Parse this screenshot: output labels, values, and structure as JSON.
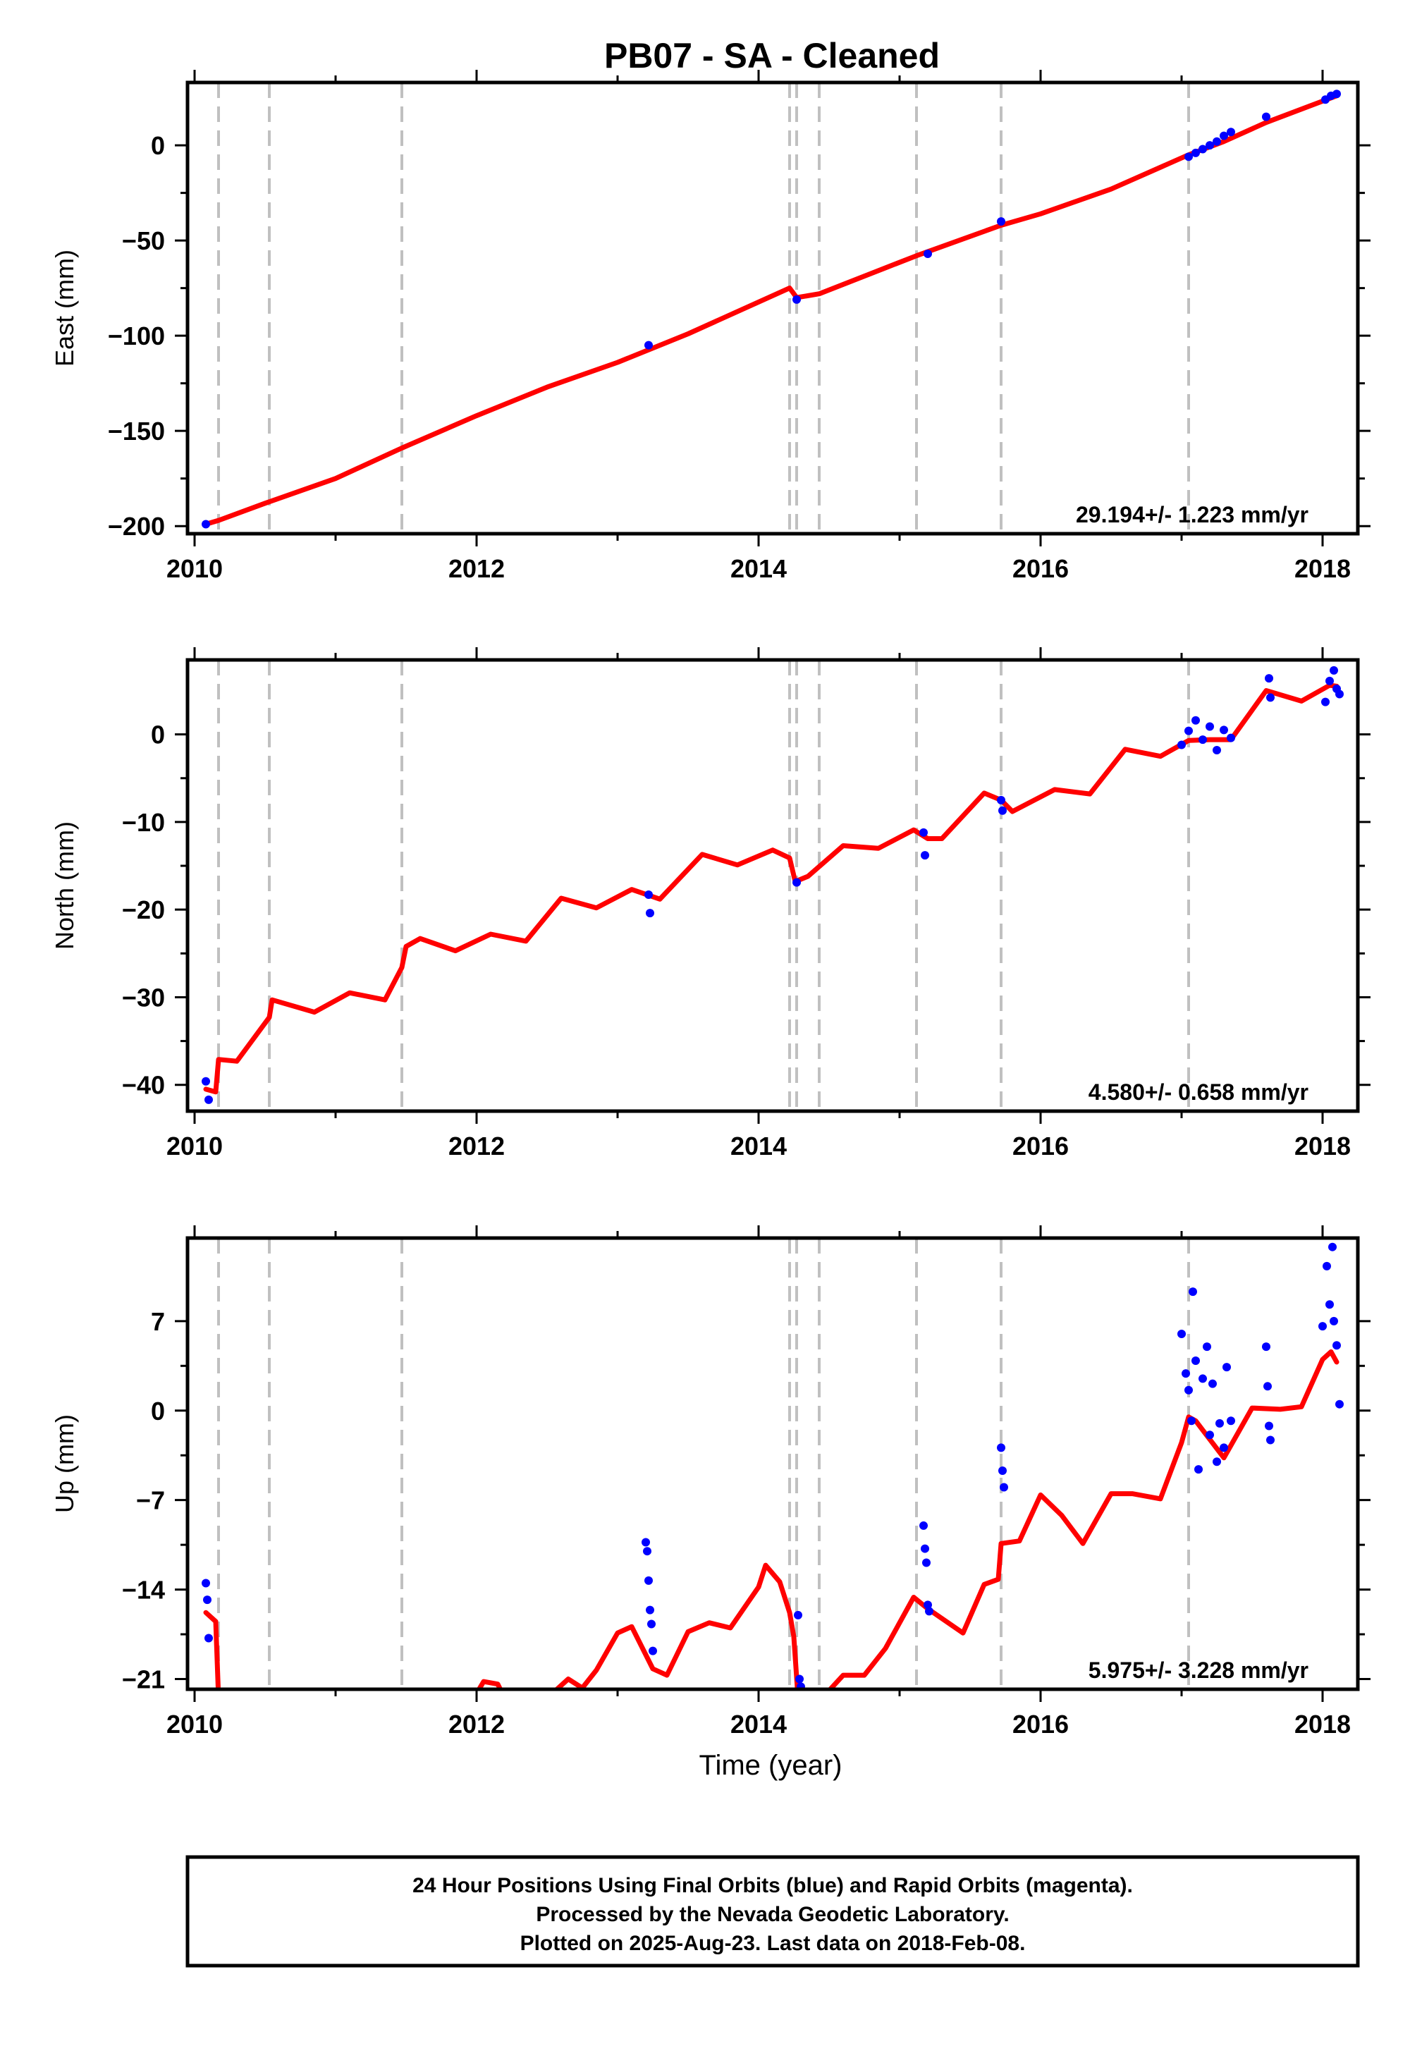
{
  "title": "PB07  - SA - Cleaned",
  "xlabel": "Time (year)",
  "colors": {
    "model": "#ff0000",
    "final_orbits": "#0000ff",
    "event_lines": "#c0c0c0"
  },
  "footer": {
    "line1": "24 Hour Positions Using Final Orbits (blue) and Rapid Orbits (magenta).",
    "line2": "Processed by the Nevada Geodetic Laboratory.",
    "line3": "Plotted on 2025-Aug-23. Last data on 2018-Feb-08."
  },
  "chart_data": [
    {
      "type": "scatter",
      "ylabel": "East (mm)",
      "rate_label": "29.194+/- 1.223 mm/yr",
      "xlim": [
        2009.95,
        2018.25
      ],
      "ylim": [
        -204,
        33
      ],
      "xticks": [
        2010,
        2012,
        2014,
        2016,
        2018
      ],
      "yticks": [
        0,
        -50,
        -100,
        -150,
        -200
      ],
      "grid": false,
      "event_lines": [
        2010.17,
        2010.53,
        2011.47,
        2014.22,
        2014.27,
        2014.43,
        2015.12,
        2015.72,
        2017.05
      ],
      "model": [
        [
          2010.08,
          -199
        ],
        [
          2010.17,
          -197
        ],
        [
          2010.5,
          -188
        ],
        [
          2011,
          -175
        ],
        [
          2011.47,
          -159
        ],
        [
          2012,
          -142
        ],
        [
          2012.5,
          -127
        ],
        [
          2013,
          -114
        ],
        [
          2013.5,
          -99
        ],
        [
          2014.22,
          -75
        ],
        [
          2014.27,
          -80
        ],
        [
          2014.43,
          -78
        ],
        [
          2015.12,
          -58
        ],
        [
          2015.72,
          -42
        ],
        [
          2016,
          -36
        ],
        [
          2016.5,
          -23
        ],
        [
          2017.05,
          -5
        ],
        [
          2017.3,
          2
        ],
        [
          2017.6,
          12
        ],
        [
          2018.1,
          26
        ]
      ],
      "points": [
        [
          2010.08,
          -199
        ],
        [
          2013.22,
          -105
        ],
        [
          2014.27,
          -81
        ],
        [
          2015.2,
          -57
        ],
        [
          2015.72,
          -40
        ],
        [
          2017.05,
          -6
        ],
        [
          2017.1,
          -4
        ],
        [
          2017.15,
          -2
        ],
        [
          2017.2,
          0
        ],
        [
          2017.25,
          2
        ],
        [
          2017.3,
          5
        ],
        [
          2017.35,
          7
        ],
        [
          2017.6,
          15
        ],
        [
          2018.02,
          24
        ],
        [
          2018.06,
          26
        ],
        [
          2018.1,
          27
        ]
      ]
    },
    {
      "type": "scatter",
      "ylabel": "North (mm)",
      "rate_label": "4.580+/- 0.658 mm/yr",
      "xlim": [
        2009.95,
        2018.25
      ],
      "ylim": [
        -43,
        8.5
      ],
      "xticks": [
        2010,
        2012,
        2014,
        2016,
        2018
      ],
      "yticks": [
        0,
        -10,
        -20,
        -30,
        -40
      ],
      "grid": false,
      "event_lines": [
        2010.17,
        2010.53,
        2011.47,
        2014.22,
        2014.27,
        2014.43,
        2015.12,
        2015.72,
        2017.05
      ],
      "model": [
        [
          2010.08,
          -40.5
        ],
        [
          2010.15,
          -40.8
        ],
        [
          2010.17,
          -37.1
        ],
        [
          2010.3,
          -37.3
        ],
        [
          2010.53,
          -32.3
        ],
        [
          2010.55,
          -30.3
        ],
        [
          2010.85,
          -31.7
        ],
        [
          2011.1,
          -29.5
        ],
        [
          2011.35,
          -30.3
        ],
        [
          2011.47,
          -26.6
        ],
        [
          2011.5,
          -24.2
        ],
        [
          2011.6,
          -23.3
        ],
        [
          2011.85,
          -24.7
        ],
        [
          2012.1,
          -22.8
        ],
        [
          2012.35,
          -23.6
        ],
        [
          2012.6,
          -18.7
        ],
        [
          2012.85,
          -19.8
        ],
        [
          2013.1,
          -17.7
        ],
        [
          2013.3,
          -18.8
        ],
        [
          2013.6,
          -13.7
        ],
        [
          2013.85,
          -14.9
        ],
        [
          2014.1,
          -13.2
        ],
        [
          2014.22,
          -14.1
        ],
        [
          2014.26,
          -16.8
        ],
        [
          2014.35,
          -16.2
        ],
        [
          2014.6,
          -12.7
        ],
        [
          2014.85,
          -13.0
        ],
        [
          2015.1,
          -10.9
        ],
        [
          2015.2,
          -11.9
        ],
        [
          2015.3,
          -11.9
        ],
        [
          2015.6,
          -6.7
        ],
        [
          2015.72,
          -7.5
        ],
        [
          2015.8,
          -8.8
        ],
        [
          2016.1,
          -6.3
        ],
        [
          2016.35,
          -6.8
        ],
        [
          2016.6,
          -1.7
        ],
        [
          2016.85,
          -2.5
        ],
        [
          2017.05,
          -0.7
        ],
        [
          2017.2,
          -0.6
        ],
        [
          2017.35,
          -0.6
        ],
        [
          2017.6,
          5.0
        ],
        [
          2017.85,
          3.8
        ],
        [
          2018.05,
          5.6
        ],
        [
          2018.1,
          5.5
        ]
      ],
      "points": [
        [
          2010.08,
          -39.6
        ],
        [
          2010.1,
          -41.7
        ],
        [
          2013.22,
          -18.3
        ],
        [
          2013.23,
          -20.4
        ],
        [
          2014.27,
          -16.9
        ],
        [
          2015.17,
          -11.2
        ],
        [
          2015.18,
          -13.8
        ],
        [
          2015.72,
          -7.5
        ],
        [
          2015.73,
          -8.7
        ],
        [
          2017.0,
          -1.2
        ],
        [
          2017.05,
          0.4
        ],
        [
          2017.1,
          1.6
        ],
        [
          2017.15,
          -0.6
        ],
        [
          2017.2,
          0.9
        ],
        [
          2017.25,
          -1.8
        ],
        [
          2017.3,
          0.5
        ],
        [
          2017.35,
          -0.4
        ],
        [
          2017.62,
          6.4
        ],
        [
          2017.63,
          4.2
        ],
        [
          2018.02,
          3.7
        ],
        [
          2018.05,
          6.1
        ],
        [
          2018.08,
          7.3
        ],
        [
          2018.1,
          5.2
        ],
        [
          2018.12,
          4.6
        ]
      ]
    },
    {
      "type": "scatter",
      "ylabel": "Up (mm)",
      "rate_label": "5.975+/- 3.228 mm/yr",
      "xlim": [
        2009.95,
        2018.25
      ],
      "ylim": [
        -21.8,
        13.5
      ],
      "xticks": [
        2010,
        2012,
        2014,
        2016,
        2018
      ],
      "yticks": [
        7,
        0,
        -7,
        -14,
        -21
      ],
      "grid": false,
      "event_lines": [
        2010.17,
        2010.53,
        2011.47,
        2014.22,
        2014.27,
        2014.43,
        2015.12,
        2015.72,
        2017.05
      ],
      "model": [
        [
          2010.08,
          -15.8
        ],
        [
          2010.15,
          -16.5
        ],
        [
          2010.17,
          -22.5
        ],
        [
          2011.98,
          -22.5
        ],
        [
          2012.05,
          -21.2
        ],
        [
          2012.15,
          -21.4
        ],
        [
          2012.2,
          -22.5
        ],
        [
          2012.5,
          -22.5
        ],
        [
          2012.65,
          -21.0
        ],
        [
          2012.75,
          -21.7
        ],
        [
          2012.85,
          -20.3
        ],
        [
          2013.0,
          -17.4
        ],
        [
          2013.1,
          -16.9
        ],
        [
          2013.25,
          -20.2
        ],
        [
          2013.35,
          -20.7
        ],
        [
          2013.5,
          -17.3
        ],
        [
          2013.65,
          -16.6
        ],
        [
          2013.8,
          -17.0
        ],
        [
          2014.0,
          -13.8
        ],
        [
          2014.05,
          -12.1
        ],
        [
          2014.15,
          -13.4
        ],
        [
          2014.22,
          -15.8
        ],
        [
          2014.25,
          -17.7
        ],
        [
          2014.28,
          -22.5
        ],
        [
          2014.45,
          -22.5
        ],
        [
          2014.6,
          -20.7
        ],
        [
          2014.75,
          -20.7
        ],
        [
          2014.9,
          -18.6
        ],
        [
          2015.1,
          -14.6
        ],
        [
          2015.2,
          -15.5
        ],
        [
          2015.45,
          -17.4
        ],
        [
          2015.6,
          -13.6
        ],
        [
          2015.7,
          -13.2
        ],
        [
          2015.72,
          -10.4
        ],
        [
          2015.85,
          -10.2
        ],
        [
          2016.0,
          -6.6
        ],
        [
          2016.15,
          -8.2
        ],
        [
          2016.3,
          -10.4
        ],
        [
          2016.5,
          -6.5
        ],
        [
          2016.65,
          -6.5
        ],
        [
          2016.85,
          -6.9
        ],
        [
          2017.0,
          -2.5
        ],
        [
          2017.05,
          -0.5
        ],
        [
          2017.1,
          -0.8
        ],
        [
          2017.3,
          -3.7
        ],
        [
          2017.5,
          0.2
        ],
        [
          2017.7,
          0.1
        ],
        [
          2017.85,
          0.3
        ],
        [
          2018.0,
          4.0
        ],
        [
          2018.06,
          4.6
        ],
        [
          2018.1,
          3.8
        ]
      ],
      "points": [
        [
          2010.08,
          -13.5
        ],
        [
          2010.09,
          -14.8
        ],
        [
          2010.1,
          -17.8
        ],
        [
          2013.2,
          -10.3
        ],
        [
          2013.21,
          -11.0
        ],
        [
          2013.22,
          -13.3
        ],
        [
          2013.23,
          -15.6
        ],
        [
          2013.24,
          -16.7
        ],
        [
          2013.25,
          -18.8
        ],
        [
          2014.28,
          -16.0
        ],
        [
          2014.29,
          -21.0
        ],
        [
          2014.3,
          -21.6
        ],
        [
          2015.17,
          -9.0
        ],
        [
          2015.18,
          -10.8
        ],
        [
          2015.19,
          -11.9
        ],
        [
          2015.2,
          -15.2
        ],
        [
          2015.21,
          -15.7
        ],
        [
          2015.72,
          -2.9
        ],
        [
          2015.73,
          -4.7
        ],
        [
          2015.74,
          -6.0
        ],
        [
          2017.0,
          6.0
        ],
        [
          2017.03,
          2.9
        ],
        [
          2017.05,
          1.6
        ],
        [
          2017.07,
          -0.8
        ],
        [
          2017.08,
          9.3
        ],
        [
          2017.1,
          3.9
        ],
        [
          2017.12,
          -4.6
        ],
        [
          2017.15,
          2.5
        ],
        [
          2017.18,
          5.0
        ],
        [
          2017.2,
          -1.9
        ],
        [
          2017.22,
          2.1
        ],
        [
          2017.25,
          -4.0
        ],
        [
          2017.27,
          -1.0
        ],
        [
          2017.3,
          -2.9
        ],
        [
          2017.32,
          3.4
        ],
        [
          2017.35,
          -0.8
        ],
        [
          2017.6,
          5.0
        ],
        [
          2017.61,
          1.9
        ],
        [
          2017.62,
          -1.2
        ],
        [
          2017.63,
          -2.3
        ],
        [
          2018.0,
          6.6
        ],
        [
          2018.03,
          11.3
        ],
        [
          2018.05,
          8.3
        ],
        [
          2018.07,
          12.8
        ],
        [
          2018.08,
          7.0
        ],
        [
          2018.1,
          5.1
        ],
        [
          2018.12,
          0.5
        ]
      ]
    }
  ]
}
